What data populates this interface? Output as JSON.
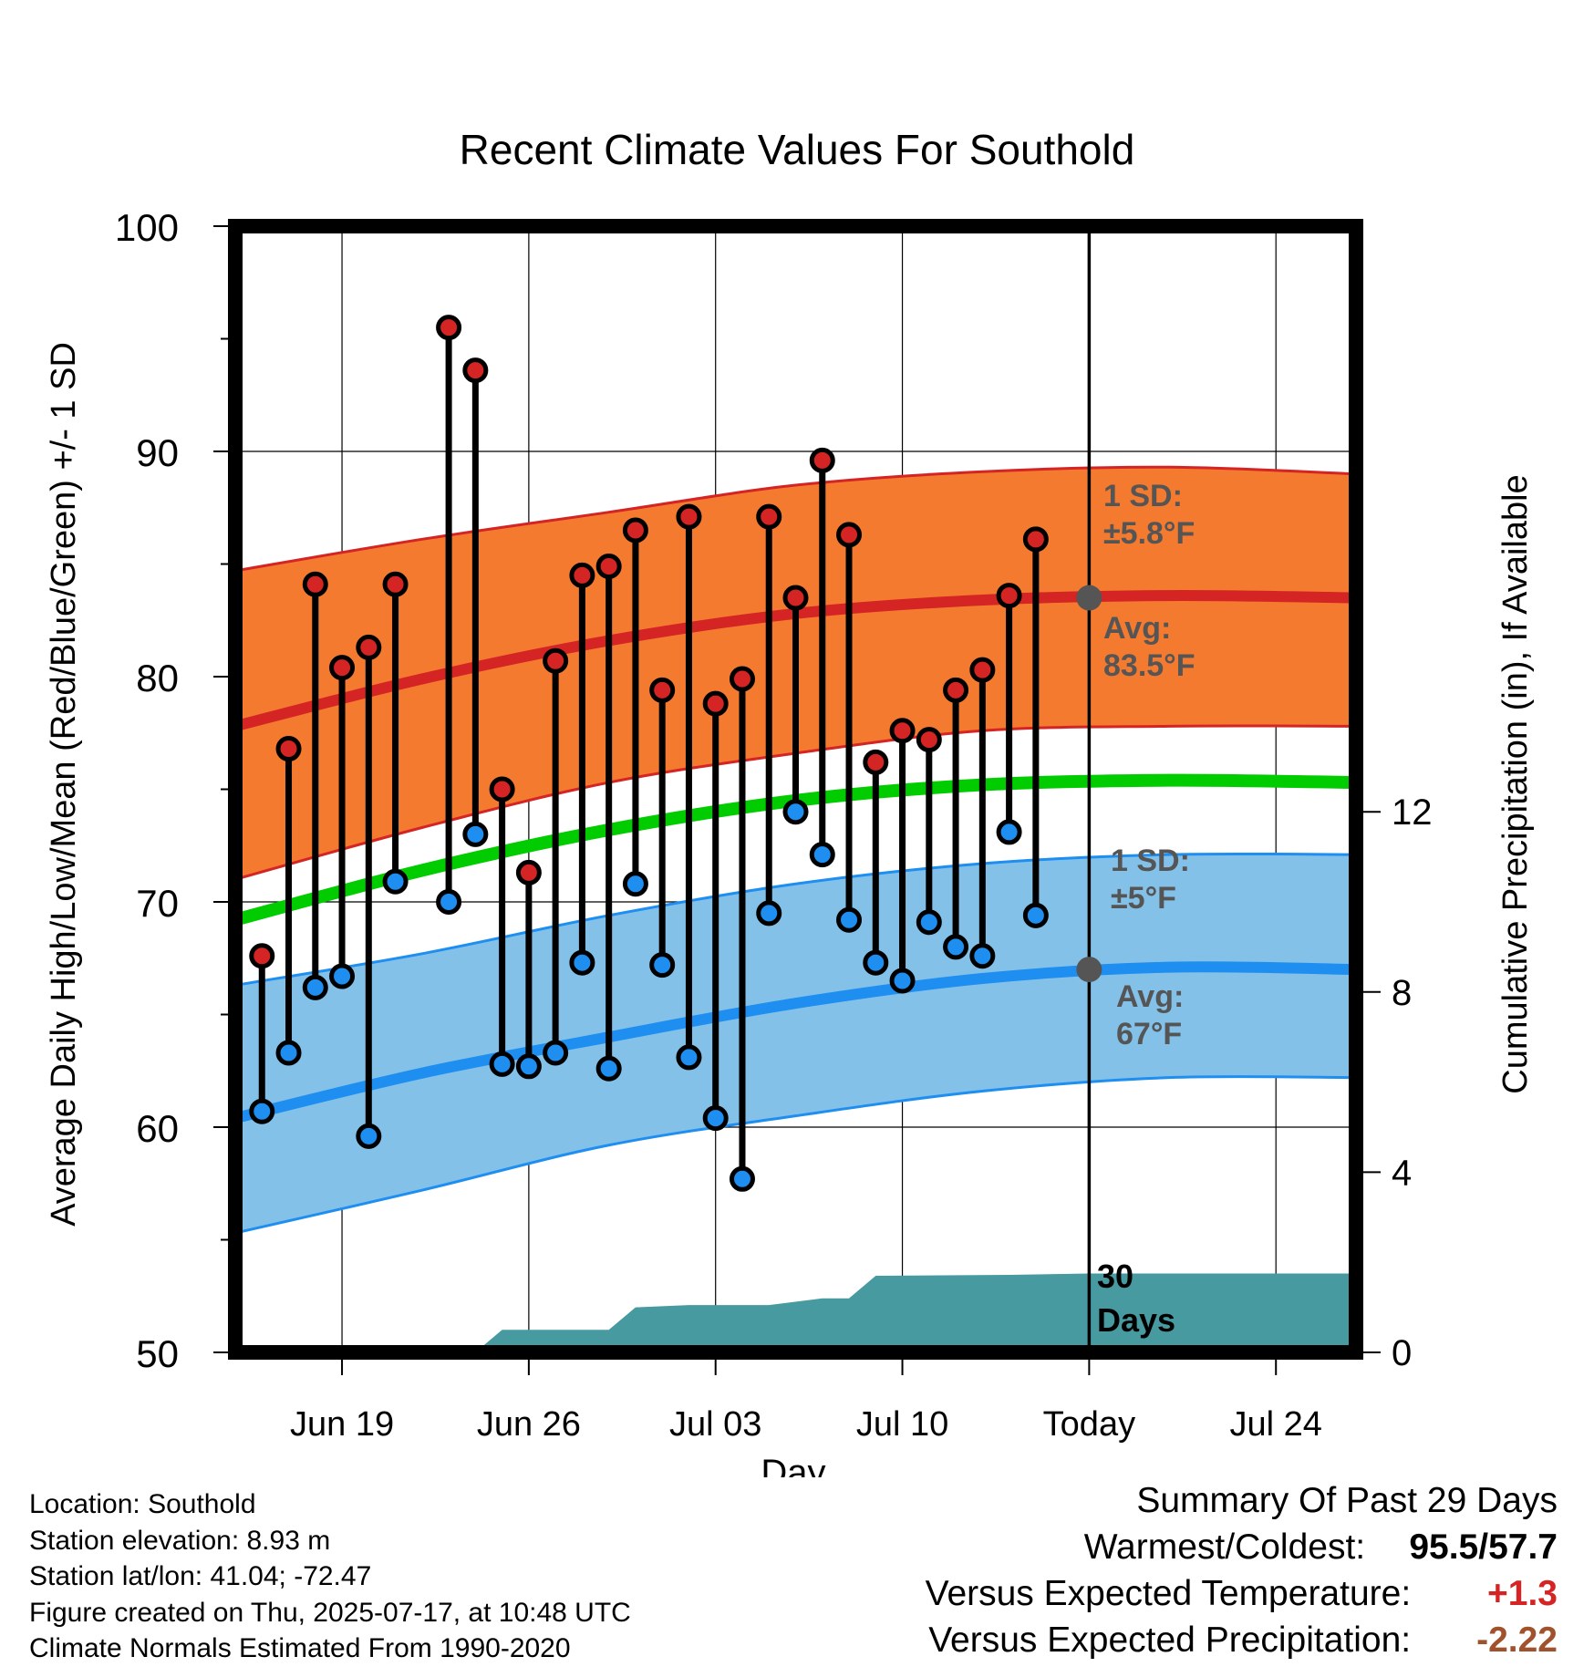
{
  "chart_data": {
    "type": "line",
    "title": "Recent Climate Values For Southold",
    "xlabel": "Day",
    "ylabel_left": "Average Daily High/Low/Mean (Red/Blue/Green) +/- 1 SD",
    "ylabel_right": "Cumulative Precipitation (in), If Available",
    "ylim_left": [
      50,
      100
    ],
    "left_ticks": [
      "50",
      "60",
      "70",
      "80",
      "90",
      "100"
    ],
    "ylim_right": [
      0,
      25
    ],
    "right_ticks": [
      "0",
      "4",
      "8",
      "12"
    ],
    "x_domain": [
      "2025-06-15",
      "2025-07-27"
    ],
    "x_ticks": [
      {
        "date": "2025-06-19",
        "label": "Jun 19"
      },
      {
        "date": "2025-06-26",
        "label": "Jun 26"
      },
      {
        "date": "2025-07-03",
        "label": "Jul 03"
      },
      {
        "date": "2025-07-10",
        "label": "Jul 10"
      },
      {
        "date": "2025-07-17",
        "label": "Today"
      },
      {
        "date": "2025-07-24",
        "label": "Jul 24"
      }
    ],
    "today": "2025-07-17",
    "daily": [
      {
        "date": "2025-06-16",
        "high": 67.6,
        "low": 60.7
      },
      {
        "date": "2025-06-17",
        "high": 76.8,
        "low": 63.3
      },
      {
        "date": "2025-06-18",
        "high": 84.1,
        "low": 66.2
      },
      {
        "date": "2025-06-19",
        "high": 80.4,
        "low": 66.7
      },
      {
        "date": "2025-06-20",
        "high": 81.3,
        "low": 59.6
      },
      {
        "date": "2025-06-21",
        "high": 84.1,
        "low": 70.9
      },
      {
        "date": "2025-06-23",
        "high": 95.5,
        "low": 70.0
      },
      {
        "date": "2025-06-24",
        "high": 93.6,
        "low": 73.0
      },
      {
        "date": "2025-06-25",
        "high": 75.0,
        "low": 62.8
      },
      {
        "date": "2025-06-26",
        "high": 71.3,
        "low": 62.7
      },
      {
        "date": "2025-06-27",
        "high": 80.7,
        "low": 63.3
      },
      {
        "date": "2025-06-28",
        "high": 84.5,
        "low": 67.3
      },
      {
        "date": "2025-06-29",
        "high": 84.9,
        "low": 62.6
      },
      {
        "date": "2025-06-30",
        "high": 86.5,
        "low": 70.8
      },
      {
        "date": "2025-07-01",
        "high": 79.4,
        "low": 67.2
      },
      {
        "date": "2025-07-02",
        "high": 87.1,
        "low": 63.1
      },
      {
        "date": "2025-07-03",
        "high": 78.8,
        "low": 60.4
      },
      {
        "date": "2025-07-04",
        "high": 79.9,
        "low": 57.7
      },
      {
        "date": "2025-07-05",
        "high": 87.1,
        "low": 69.5
      },
      {
        "date": "2025-07-06",
        "high": 83.5,
        "low": 74.0
      },
      {
        "date": "2025-07-07",
        "high": 89.6,
        "low": 72.1
      },
      {
        "date": "2025-07-08",
        "high": 86.3,
        "low": 69.2
      },
      {
        "date": "2025-07-09",
        "high": 76.2,
        "low": 67.3
      },
      {
        "date": "2025-07-10",
        "high": 77.6,
        "low": 66.5
      },
      {
        "date": "2025-07-11",
        "high": 77.2,
        "low": 69.1
      },
      {
        "date": "2025-07-12",
        "high": 79.4,
        "low": 68.0
      },
      {
        "date": "2025-07-13",
        "high": 80.3,
        "low": 67.6
      },
      {
        "date": "2025-07-14",
        "high": 83.6,
        "low": 73.1
      },
      {
        "date": "2025-07-15",
        "high": 86.1,
        "low": 69.4
      }
    ],
    "normals": [
      {
        "date": "2025-06-15",
        "high": 77.8,
        "high_sd_upper": 84.7,
        "high_sd_lower": 71.0,
        "low": 60.4,
        "low_sd_upper": 66.3,
        "low_sd_lower": 55.3,
        "mean": 69.2
      },
      {
        "date": "2025-06-22",
        "high": 79.9,
        "high_sd_upper": 86.1,
        "high_sd_lower": 73.3,
        "low": 62.4,
        "low_sd_upper": 67.7,
        "low_sd_lower": 57.2,
        "mean": 71.4
      },
      {
        "date": "2025-06-29",
        "high": 81.6,
        "high_sd_upper": 87.3,
        "high_sd_lower": 75.3,
        "low": 64.0,
        "low_sd_upper": 69.4,
        "low_sd_lower": 59.2,
        "mean": 73.2
      },
      {
        "date": "2025-07-06",
        "high": 82.8,
        "high_sd_upper": 88.5,
        "high_sd_lower": 76.6,
        "low": 65.5,
        "low_sd_upper": 70.8,
        "low_sd_lower": 60.5,
        "mean": 74.5
      },
      {
        "date": "2025-07-13",
        "high": 83.4,
        "high_sd_upper": 89.1,
        "high_sd_lower": 77.6,
        "low": 66.6,
        "low_sd_upper": 71.7,
        "low_sd_lower": 61.6,
        "mean": 75.2
      },
      {
        "date": "2025-07-20",
        "high": 83.6,
        "high_sd_upper": 89.3,
        "high_sd_lower": 77.8,
        "low": 67.1,
        "low_sd_upper": 72.1,
        "low_sd_lower": 62.2,
        "mean": 75.4
      },
      {
        "date": "2025-07-27",
        "high": 83.5,
        "high_sd_upper": 89.0,
        "high_sd_lower": 77.8,
        "low": 67.0,
        "low_sd_upper": 72.1,
        "low_sd_lower": 62.2,
        "mean": 75.3
      }
    ],
    "precip_cumulative": [
      {
        "date": "2025-06-15",
        "value": 0
      },
      {
        "date": "2025-06-24",
        "value": 0
      },
      {
        "date": "2025-06-25",
        "value": 0.5
      },
      {
        "date": "2025-06-29",
        "value": 0.5
      },
      {
        "date": "2025-06-30",
        "value": 1.0
      },
      {
        "date": "2025-07-02",
        "value": 1.05
      },
      {
        "date": "2025-07-05",
        "value": 1.05
      },
      {
        "date": "2025-07-07",
        "value": 1.2
      },
      {
        "date": "2025-07-08",
        "value": 1.2
      },
      {
        "date": "2025-07-09",
        "value": 1.7
      },
      {
        "date": "2025-07-14",
        "value": 1.72
      },
      {
        "date": "2025-07-17",
        "value": 1.75
      },
      {
        "date": "2025-07-27",
        "value": 1.75
      }
    ],
    "annotations": {
      "high_sd_label": "1 SD:",
      "high_sd_value": "±5.8°F",
      "high_avg_label": "Avg:",
      "high_avg_value": "83.5°F",
      "low_sd_label": "1 SD:",
      "low_sd_value": "±5°F",
      "low_avg_label": "Avg:",
      "low_avg_value": "67°F",
      "today_high_avg": 83.5,
      "today_low_avg": 67,
      "days_label_1": "30",
      "days_label_2": "Days"
    },
    "colors": {
      "high": "#d42424",
      "high_band": "#f47a30",
      "low": "#1e8ff0",
      "low_band": "#84c1e8",
      "mean": "#00cc00",
      "precip": "#469aa0",
      "annotation": "#555555"
    }
  },
  "info": {
    "location": "Location: Southold",
    "elevation": "Station elevation: 8.93 m",
    "latlon": "Station lat/lon: 41.04; -72.47",
    "created": "Figure created on Thu, 2025-07-17, at 10:48 UTC",
    "normals": "Climate Normals Estimated From 1990-2020"
  },
  "summary": {
    "title": "Summary Of Past 29 Days",
    "warmest_label": "Warmest/Coldest:",
    "warmest_value": "95.5/57.7",
    "temp_label": "Versus Expected Temperature:",
    "temp_value": "+1.3",
    "temp_color": "#d42424",
    "precip_label": "Versus Expected Precipitation:",
    "precip_value": "-2.22",
    "precip_color": "#a0522d"
  }
}
